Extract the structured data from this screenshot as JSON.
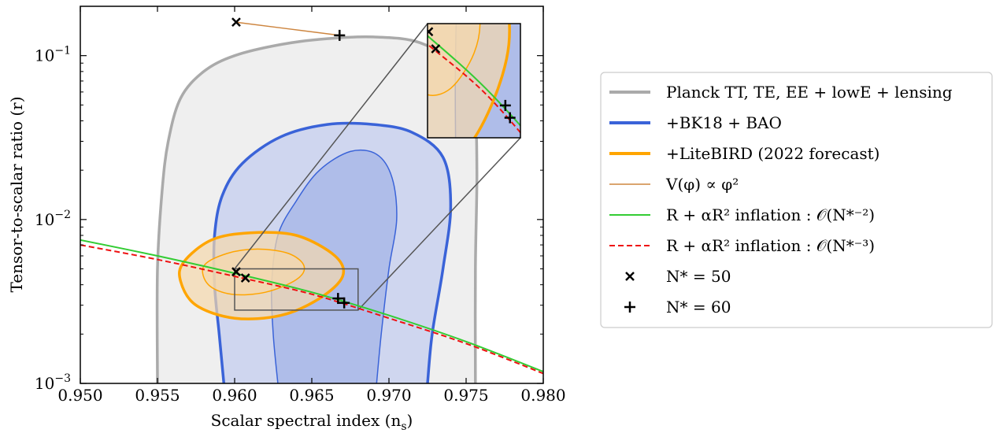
{
  "chart_data": {
    "type": "scatter",
    "xlabel": "Scalar spectral index (n",
    "xlabel_sub": "s",
    "xlabel_close": ")",
    "ylabel": "Tensor-to-scalar ratio (r)",
    "xlim": [
      0.95,
      0.98
    ],
    "ylim": [
      0.001,
      0.2
    ],
    "yscale": "log",
    "grid": false,
    "legend_position": "right",
    "x_ticks": [
      "0.950",
      "0.955",
      "0.960",
      "0.965",
      "0.970",
      "0.975",
      "0.980"
    ],
    "x_tick_values": [
      0.95,
      0.955,
      0.96,
      0.965,
      0.97,
      0.975,
      0.98
    ],
    "y_ticks": [
      {
        "value": 0.1,
        "base": "10",
        "exp": "−1"
      },
      {
        "value": 0.01,
        "base": "10",
        "exp": "−2"
      },
      {
        "value": 0.001,
        "base": "10",
        "exp": "−3"
      }
    ],
    "legend": [
      {
        "label": "Planck TT, TE, EE + lowE + lensing",
        "style": "thick-line",
        "color": "#aaaaaa"
      },
      {
        "label": "+BK18 + BAO",
        "style": "thick-line",
        "color": "#3a63d8"
      },
      {
        "label": "+LiteBIRD (2022 forecast)",
        "style": "thick-line",
        "color": "#ffa500"
      },
      {
        "label": "V(φ) ∝ φ²",
        "style": "thin-line",
        "color": "#cd853f"
      },
      {
        "label": "R + αR² inflation : 𝒪(N*⁻²)",
        "style": "line",
        "color": "#33cc33"
      },
      {
        "label": "R + αR² inflation : 𝒪(N*⁻³)",
        "style": "dashed",
        "color": "#ee1111"
      },
      {
        "label": "N* = 50",
        "style": "x-marker",
        "color": "#000000"
      },
      {
        "label": "N* = 60",
        "style": "plus-marker",
        "color": "#000000"
      }
    ],
    "series": [
      {
        "name": "V(φ) ∝ φ²",
        "type": "line",
        "color": "#cd853f",
        "x": [
          0.9601,
          0.9668
        ],
        "y": [
          0.16,
          0.133
        ]
      },
      {
        "name": "R + αR² inflation : 𝒪(N*⁻²)",
        "type": "line",
        "color": "#33cc33",
        "x": [
          0.95,
          0.955,
          0.96,
          0.965,
          0.97,
          0.975,
          0.98
        ],
        "y": [
          0.0075,
          0.006,
          0.0047,
          0.0036,
          0.0026,
          0.0018,
          0.00118
        ]
      },
      {
        "name": "R + αR² inflation : 𝒪(N*⁻³)",
        "type": "dashed",
        "color": "#ee1111",
        "x": [
          0.95,
          0.955,
          0.96,
          0.965,
          0.97,
          0.975,
          0.98
        ],
        "y": [
          0.007,
          0.0057,
          0.0045,
          0.0035,
          0.0025,
          0.00175,
          0.00115
        ]
      },
      {
        "name": "N* = 50",
        "type": "x-marker",
        "x": [
          0.9601,
          0.9601,
          0.9607
        ],
        "y": [
          0.16,
          0.0048,
          0.0044
        ]
      },
      {
        "name": "N* = 60",
        "type": "plus-marker",
        "x": [
          0.9668,
          0.9667,
          0.9671
        ],
        "y": [
          0.133,
          0.0033,
          0.0031
        ]
      }
    ],
    "contours": [
      {
        "name": "Planck TT, TE, EE + lowE + lensing",
        "level": "outer",
        "color": "#aaaaaa",
        "x": [
          0.955,
          0.955,
          0.9553,
          0.9557,
          0.9565,
          0.958,
          0.96,
          0.963,
          0.966,
          0.969,
          0.972,
          0.9745,
          0.9755,
          0.9757,
          0.9756,
          0.9756
        ],
        "y": [
          0.001,
          0.005,
          0.015,
          0.03,
          0.055,
          0.08,
          0.1,
          0.117,
          0.127,
          0.13,
          0.12,
          0.085,
          0.05,
          0.02,
          0.005,
          0.001
        ]
      },
      {
        "name": "+BK18 + BAO",
        "level": "outer",
        "color": "#3a63d8",
        "x": [
          0.9593,
          0.959,
          0.9587,
          0.9587,
          0.9592,
          0.9605,
          0.963,
          0.966,
          0.969,
          0.9715,
          0.9735,
          0.974,
          0.9735,
          0.9728,
          0.9725
        ],
        "y": [
          0.001,
          0.002,
          0.004,
          0.008,
          0.014,
          0.022,
          0.032,
          0.038,
          0.038,
          0.034,
          0.024,
          0.012,
          0.005,
          0.002,
          0.001
        ]
      },
      {
        "name": "+BK18 + BAO",
        "level": "inner",
        "color": "#3a63d8",
        "x": [
          0.9628,
          0.9625,
          0.9624,
          0.9628,
          0.964,
          0.9655,
          0.9675,
          0.9692,
          0.9702,
          0.9705,
          0.97,
          0.9695,
          0.9692
        ],
        "y": [
          0.001,
          0.002,
          0.004,
          0.008,
          0.013,
          0.02,
          0.026,
          0.025,
          0.018,
          0.01,
          0.005,
          0.002,
          0.001
        ]
      },
      {
        "name": "+LiteBIRD (2022 forecast)",
        "level": "outer",
        "color": "#ffa500",
        "x": [
          0.9567,
          0.9585,
          0.961,
          0.964,
          0.9665,
          0.967,
          0.9655,
          0.963,
          0.96,
          0.9575,
          0.9565,
          0.9567
        ],
        "y": [
          0.0055,
          0.0075,
          0.0083,
          0.008,
          0.006,
          0.0045,
          0.0033,
          0.0026,
          0.0025,
          0.003,
          0.0042,
          0.0055
        ]
      },
      {
        "name": "+LiteBIRD (2022 forecast)",
        "level": "inner",
        "color": "#ffa500",
        "x": [
          0.958,
          0.9595,
          0.9615,
          0.9635,
          0.9645,
          0.964,
          0.962,
          0.9598,
          0.9583,
          0.958
        ],
        "y": [
          0.0052,
          0.0062,
          0.0066,
          0.0062,
          0.0052,
          0.0043,
          0.0036,
          0.0035,
          0.004,
          0.0052
        ]
      }
    ],
    "zoom_region": {
      "x": [
        0.96,
        0.968
      ],
      "y": [
        0.0028,
        0.005
      ]
    },
    "colors": {
      "planck_fill": "#ececec",
      "planck_line": "#aaaaaa",
      "bk_fill_outer": "#c9d1ef",
      "bk_fill_inner": "#a9b8e7",
      "bk_line": "#3a63d8",
      "lite_fill": "#f5d8ac",
      "lite_line": "#ffa500",
      "phi2_line": "#cd853f",
      "green_line": "#33cc33",
      "red_line": "#ee1111"
    }
  }
}
